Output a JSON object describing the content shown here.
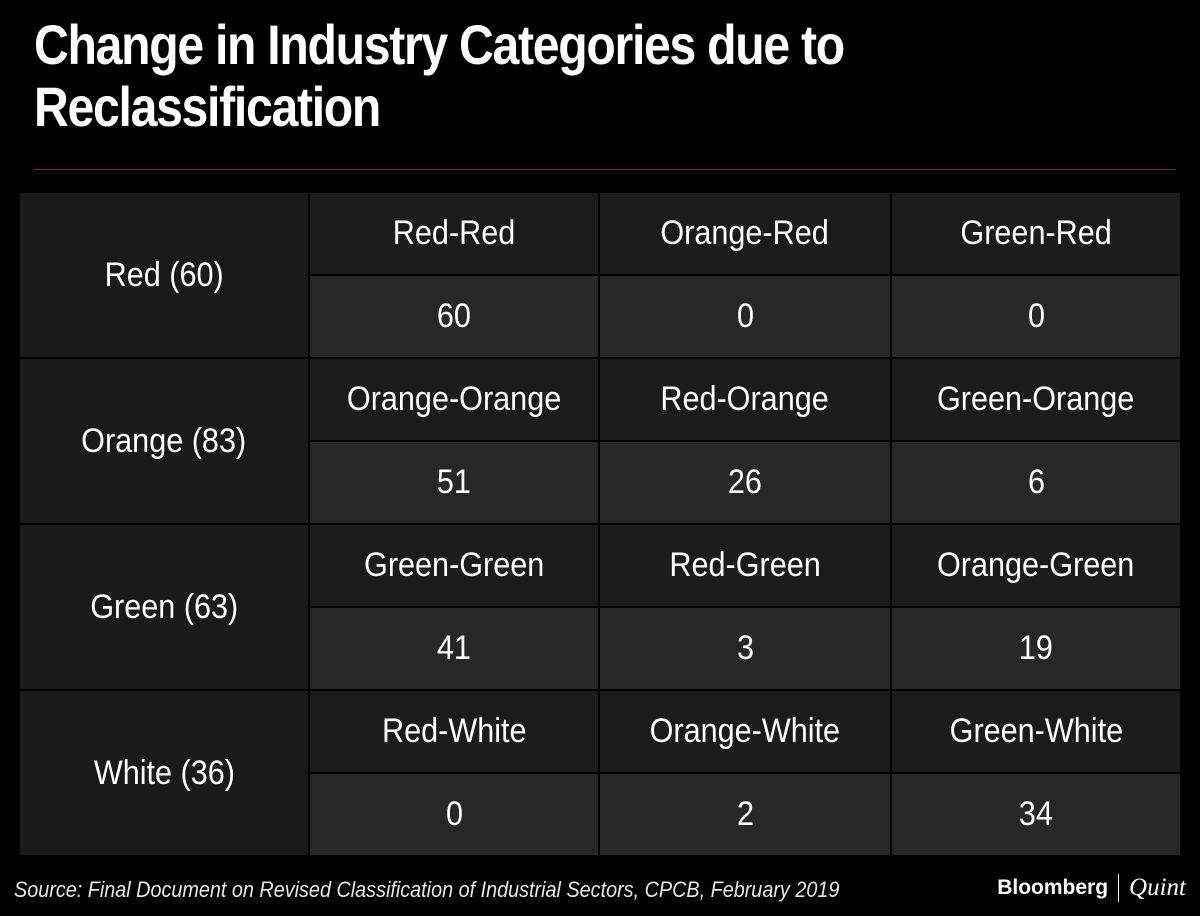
{
  "title": "Change in Industry Categories due to Reclassification",
  "source": "Source: Final Document on Revised Classification of Industrial Sectors, CPCB, February 2019",
  "brand": {
    "primary": "Bloomberg",
    "secondary": "Quint"
  },
  "colors": {
    "background": "#000000",
    "label_cell": "#1b1b1b",
    "value_cell": "#272727",
    "rule": "#7a2f22"
  },
  "chart_data": {
    "type": "table",
    "title": "Change in Industry Categories due to Reclassification",
    "rows": [
      {
        "label": "Red (60)",
        "cells": [
          {
            "label": "Red-Red",
            "value": "60"
          },
          {
            "label": "Orange-Red",
            "value": "0"
          },
          {
            "label": "Green-Red",
            "value": "0"
          }
        ]
      },
      {
        "label": "Orange (83)",
        "cells": [
          {
            "label": "Orange-Orange",
            "value": "51"
          },
          {
            "label": "Red-Orange",
            "value": "26"
          },
          {
            "label": "Green-Orange",
            "value": "6"
          }
        ]
      },
      {
        "label": "Green (63)",
        "cells": [
          {
            "label": "Green-Green",
            "value": "41"
          },
          {
            "label": "Red-Green",
            "value": "3"
          },
          {
            "label": "Orange-Green",
            "value": "19"
          }
        ]
      },
      {
        "label": "White (36)",
        "cells": [
          {
            "label": "Red-White",
            "value": "0"
          },
          {
            "label": "Orange-White",
            "value": "2"
          },
          {
            "label": "Green-White",
            "value": "34"
          }
        ]
      }
    ]
  }
}
